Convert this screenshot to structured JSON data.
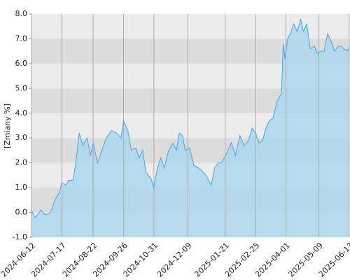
{
  "chart_data": {
    "type": "area",
    "y_label": "[Zmiany %]",
    "x": [
      "2024-06-12",
      "2024-06-16",
      "2024-06-23",
      "2024-06-28",
      "2024-07-04",
      "2024-07-09",
      "2024-07-14",
      "2024-07-17",
      "2024-07-22",
      "2024-07-25",
      "2024-07-30",
      "2024-08-02",
      "2024-08-06",
      "2024-08-10",
      "2024-08-15",
      "2024-08-19",
      "2024-08-22",
      "2024-08-27",
      "2024-09-01",
      "2024-09-06",
      "2024-09-12",
      "2024-09-18",
      "2024-09-23",
      "2024-09-26",
      "2024-10-01",
      "2024-10-05",
      "2024-10-10",
      "2024-10-14",
      "2024-10-18",
      "2024-10-22",
      "2024-10-27",
      "2024-10-31",
      "2024-11-04",
      "2024-11-08",
      "2024-11-12",
      "2024-11-17",
      "2024-11-22",
      "2024-11-26",
      "2024-11-29",
      "2024-12-03",
      "2024-12-06",
      "2024-12-11",
      "2024-12-16",
      "2024-12-21",
      "2024-12-25",
      "2024-12-30",
      "2025-01-05",
      "2025-01-09",
      "2025-01-13",
      "2025-01-17",
      "2025-01-23",
      "2025-01-28",
      "2025-02-02",
      "2025-02-07",
      "2025-02-12",
      "2025-02-17",
      "2025-02-21",
      "2025-02-25",
      "2025-03-01",
      "2025-03-05",
      "2025-03-09",
      "2025-03-13",
      "2025-03-17",
      "2025-03-22",
      "2025-03-27",
      "2025-03-29",
      "2025-03-31",
      "2025-04-03",
      "2025-04-06",
      "2025-04-10",
      "2025-04-14",
      "2025-04-18",
      "2025-04-21",
      "2025-04-25",
      "2025-04-29",
      "2025-05-04",
      "2025-05-07",
      "2025-05-11",
      "2025-05-15",
      "2025-05-19",
      "2025-05-23",
      "2025-05-27",
      "2025-05-31",
      "2025-06-04",
      "2025-06-07",
      "2025-06-11",
      "2025-06-13"
    ],
    "series": [
      {
        "color": "#5aaee8",
        "fill": "#a9d7ef",
        "values": [
          0.1,
          -0.2,
          0.1,
          -0.1,
          0.0,
          0.5,
          0.8,
          1.2,
          1.1,
          1.3,
          1.3,
          2.0,
          3.2,
          2.7,
          3.0,
          2.3,
          2.8,
          2.0,
          2.5,
          3.0,
          3.3,
          3.2,
          3.0,
          3.7,
          3.3,
          2.5,
          2.6,
          2.2,
          2.5,
          1.6,
          1.4,
          1.0,
          1.8,
          2.2,
          1.8,
          2.5,
          2.8,
          2.5,
          3.2,
          3.1,
          2.5,
          2.6,
          1.9,
          1.8,
          1.7,
          1.5,
          1.1,
          1.8,
          2.0,
          2.0,
          2.4,
          2.8,
          2.3,
          3.1,
          2.7,
          2.9,
          3.4,
          3.2,
          2.8,
          2.9,
          3.4,
          3.7,
          3.8,
          4.5,
          4.8,
          6.8,
          6.2,
          7.0,
          7.2,
          7.6,
          7.3,
          7.8,
          7.3,
          7.6,
          6.6,
          6.7,
          6.4,
          6.5,
          6.5,
          7.2,
          6.9,
          6.5,
          6.7,
          6.7,
          6.6,
          6.5,
          6.7
        ]
      }
    ],
    "xlim": [
      "2024-06-12",
      "2025-06-13"
    ],
    "xticks": [
      "2024-06-12",
      "2024-07-17",
      "2024-08-22",
      "2024-09-26",
      "2024-10-31",
      "2024-12-09",
      "2025-01-21",
      "2025-02-25",
      "2025-04-01",
      "2025-05-09",
      "2025-06-13"
    ],
    "ylim": [
      -1,
      8
    ],
    "yticks": [
      {
        "value": -1,
        "label": "-1.0"
      },
      {
        "value": 0,
        "label": "0.0"
      },
      {
        "value": 1,
        "label": "1.0"
      },
      {
        "value": 2,
        "label": "2.0"
      },
      {
        "value": 3,
        "label": "3.0"
      },
      {
        "value": 4,
        "label": "4.0"
      },
      {
        "value": 5,
        "label": "5.0"
      },
      {
        "value": 6,
        "label": "6.0"
      },
      {
        "value": 7,
        "label": "7.0"
      },
      {
        "value": 8,
        "label": "8.0"
      }
    ],
    "grid": true
  }
}
